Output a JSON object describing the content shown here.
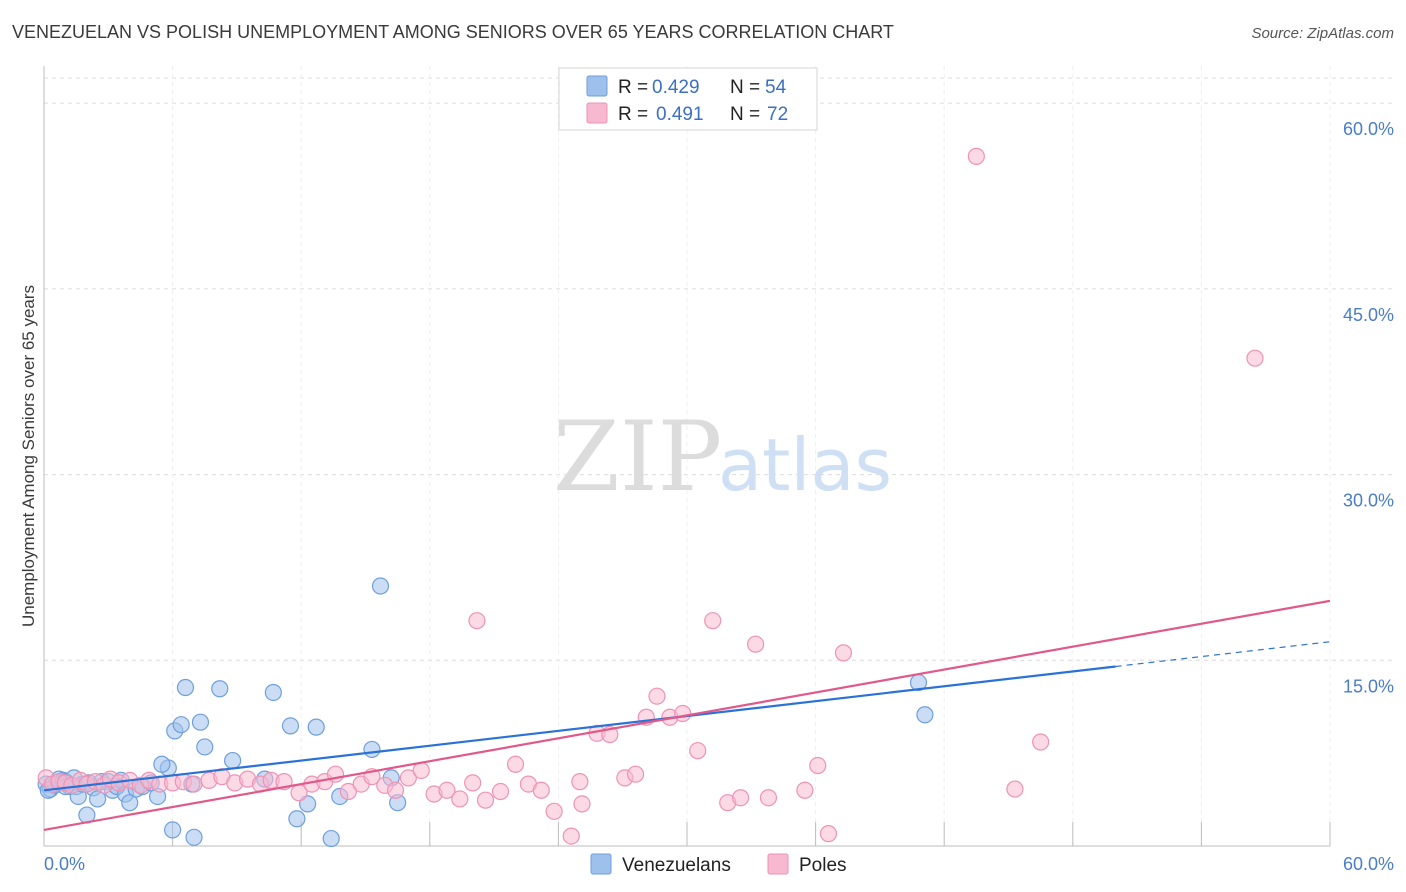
{
  "chart_data": {
    "type": "scatter",
    "title": "VENEZUELAN VS POLISH UNEMPLOYMENT AMONG SENIORS OVER 65 YEARS CORRELATION CHART",
    "source": "Source: ZipAtlas.com",
    "xlabel": "",
    "ylabel": "Unemployment Among Seniors over 65 years",
    "xlim": [
      0,
      60
    ],
    "ylim": [
      0,
      63
    ],
    "x_tick_labels": [
      "0.0%",
      "60.0%"
    ],
    "y_ticks": [
      15,
      30,
      45,
      60
    ],
    "y_tick_labels": [
      "15.0%",
      "30.0%",
      "45.0%",
      "60.0%"
    ],
    "grid": true,
    "legend": {
      "position": "top-center",
      "entries": [
        {
          "series": "Venezuelans",
          "r_label": "R = ",
          "r_value": "0.429",
          "n_label": "N = ",
          "n_value": "54"
        },
        {
          "series": "Poles",
          "r_label": "R = ",
          "r_value": "0.491",
          "n_label": "N = ",
          "n_value": "72"
        }
      ]
    },
    "watermark": {
      "zip": "ZIP",
      "atlas": "atlas"
    },
    "series": [
      {
        "name": "Venezuelans",
        "color": "#9ec1ec",
        "edge_color": "#6f9fdd",
        "trend_color": "#2b72d6",
        "trend": {
          "x0": 0,
          "y0": 4.5,
          "x1": 50,
          "y1": 14.5,
          "dash_to_x": 60,
          "dash_to_y": 16.5
        },
        "points": [
          [
            0.1,
            5.0
          ],
          [
            0.3,
            4.6
          ],
          [
            0.5,
            4.9
          ],
          [
            0.7,
            5.4
          ],
          [
            0.9,
            5.3
          ],
          [
            1.0,
            5.2
          ],
          [
            1.2,
            4.8
          ],
          [
            1.4,
            5.5
          ],
          [
            1.5,
            4.8
          ],
          [
            1.6,
            4.0
          ],
          [
            1.8,
            5.0
          ],
          [
            2.0,
            2.5
          ],
          [
            2.1,
            5.1
          ],
          [
            2.3,
            4.7
          ],
          [
            2.5,
            3.8
          ],
          [
            2.7,
            5.2
          ],
          [
            3.0,
            5.2
          ],
          [
            3.2,
            4.5
          ],
          [
            3.4,
            4.8
          ],
          [
            3.6,
            5.3
          ],
          [
            3.8,
            4.2
          ],
          [
            4.0,
            3.5
          ],
          [
            4.3,
            4.6
          ],
          [
            4.6,
            4.8
          ],
          [
            5.0,
            5.1
          ],
          [
            5.3,
            4.0
          ],
          [
            5.8,
            6.3
          ],
          [
            6.1,
            9.3
          ],
          [
            6.4,
            9.8
          ],
          [
            6.6,
            12.8
          ],
          [
            6.9,
            5.0
          ],
          [
            7.3,
            10.0
          ],
          [
            7.5,
            8.0
          ],
          [
            8.2,
            12.7
          ],
          [
            8.8,
            6.9
          ],
          [
            10.3,
            5.4
          ],
          [
            10.7,
            12.4
          ],
          [
            11.5,
            9.7
          ],
          [
            11.8,
            2.2
          ],
          [
            12.3,
            3.4
          ],
          [
            12.7,
            9.6
          ],
          [
            13.4,
            0.6
          ],
          [
            13.8,
            4.0
          ],
          [
            15.3,
            7.8
          ],
          [
            15.7,
            21.0
          ],
          [
            16.2,
            5.5
          ],
          [
            16.5,
            3.5
          ],
          [
            5.5,
            6.6
          ],
          [
            6.0,
            1.3
          ],
          [
            7.0,
            0.7
          ],
          [
            40.8,
            13.2
          ],
          [
            41.1,
            10.6
          ],
          [
            1.0,
            4.8
          ],
          [
            0.2,
            4.5
          ]
        ]
      },
      {
        "name": "Poles",
        "color": "#f7b9cf",
        "edge_color": "#ee93b5",
        "trend_color": "#e0598b",
        "trend": {
          "x0": 0,
          "y0": 1.3,
          "x1": 60,
          "y1": 19.8
        },
        "points": [
          [
            0.1,
            5.5
          ],
          [
            0.4,
            5.0
          ],
          [
            0.7,
            5.2
          ],
          [
            1.0,
            5.1
          ],
          [
            1.3,
            4.9
          ],
          [
            1.7,
            5.3
          ],
          [
            2.0,
            5.0
          ],
          [
            2.4,
            5.2
          ],
          [
            2.8,
            4.9
          ],
          [
            3.1,
            5.4
          ],
          [
            3.5,
            5.1
          ],
          [
            4.0,
            5.3
          ],
          [
            4.5,
            4.9
          ],
          [
            4.9,
            5.3
          ],
          [
            5.4,
            5.0
          ],
          [
            6.0,
            5.1
          ],
          [
            6.5,
            5.2
          ],
          [
            7.0,
            5.0
          ],
          [
            7.7,
            5.3
          ],
          [
            8.3,
            5.6
          ],
          [
            8.9,
            5.1
          ],
          [
            9.5,
            5.4
          ],
          [
            10.1,
            5.0
          ],
          [
            10.6,
            5.3
          ],
          [
            11.2,
            5.2
          ],
          [
            11.9,
            4.3
          ],
          [
            12.5,
            5.0
          ],
          [
            13.1,
            5.2
          ],
          [
            13.6,
            5.8
          ],
          [
            14.2,
            4.4
          ],
          [
            14.8,
            5.0
          ],
          [
            15.3,
            5.6
          ],
          [
            15.9,
            4.9
          ],
          [
            16.4,
            4.5
          ],
          [
            17.0,
            5.5
          ],
          [
            17.6,
            6.1
          ],
          [
            18.2,
            4.2
          ],
          [
            18.8,
            4.5
          ],
          [
            19.4,
            3.8
          ],
          [
            20.0,
            5.1
          ],
          [
            20.6,
            3.7
          ],
          [
            21.3,
            4.4
          ],
          [
            22.0,
            6.6
          ],
          [
            22.6,
            5.0
          ],
          [
            23.2,
            4.5
          ],
          [
            23.8,
            2.8
          ],
          [
            24.6,
            0.8
          ],
          [
            25.1,
            3.4
          ],
          [
            25.8,
            9.1
          ],
          [
            26.4,
            9.0
          ],
          [
            27.1,
            5.5
          ],
          [
            27.6,
            5.8
          ],
          [
            28.1,
            10.4
          ],
          [
            28.6,
            12.1
          ],
          [
            29.2,
            10.4
          ],
          [
            29.8,
            10.7
          ],
          [
            30.5,
            7.7
          ],
          [
            31.2,
            18.2
          ],
          [
            31.9,
            3.5
          ],
          [
            32.5,
            3.9
          ],
          [
            33.2,
            16.3
          ],
          [
            33.8,
            3.9
          ],
          [
            35.5,
            4.5
          ],
          [
            36.1,
            6.5
          ],
          [
            36.6,
            1.0
          ],
          [
            37.3,
            15.6
          ],
          [
            43.5,
            55.7
          ],
          [
            45.3,
            4.6
          ],
          [
            46.5,
            8.4
          ],
          [
            56.5,
            39.4
          ],
          [
            20.2,
            18.2
          ],
          [
            25.0,
            5.2
          ]
        ]
      }
    ]
  },
  "bottom_legend": {
    "items": [
      {
        "label": "Venezuelans",
        "color": "#9ec1ec",
        "edge": "#6f9fdd"
      },
      {
        "label": "Poles",
        "color": "#f7b9cf",
        "edge": "#ee93b5"
      }
    ]
  }
}
